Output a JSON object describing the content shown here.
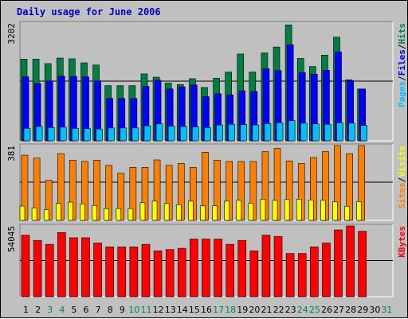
{
  "colors": {
    "hits": "#008040",
    "files": "#0000ff",
    "pages": "#00c0ff",
    "visits": "#ffff00",
    "sites": "#ff8000",
    "kbytes": "#ff0000",
    "title": "#0000c0",
    "weekend": "#00805c",
    "weekday": "#000000"
  },
  "chart_data": {
    "type": "bar",
    "title": "Daily usage for June 2006",
    "categories": [
      "1",
      "2",
      "3",
      "4",
      "5",
      "6",
      "7",
      "8",
      "9",
      "10",
      "11",
      "12",
      "13",
      "14",
      "15",
      "16",
      "17",
      "18",
      "19",
      "20",
      "21",
      "22",
      "23",
      "24",
      "25",
      "26",
      "27",
      "28",
      "29",
      "30",
      "31"
    ],
    "weekend_days": [
      "3",
      "4",
      "10",
      "11",
      "17",
      "18",
      "24",
      "25",
      "31"
    ],
    "panels": [
      {
        "id": "hits-files-pages",
        "scale_label": "3202",
        "ylim": [
          0,
          3202
        ],
        "side_label": [
          "Pages",
          "Files",
          "Hits"
        ],
        "series": [
          {
            "name": "Hits",
            "values": [
              2220,
              2220,
              2100,
              2250,
              2230,
              2120,
              2060,
              1500,
              1500,
              1500,
              1820,
              1730,
              1570,
              1530,
              1690,
              1450,
              1700,
              1870,
              2360,
              1870,
              2390,
              2550,
              3150,
              2240,
              2020,
              2330,
              2820,
              1660,
              1410,
              0,
              0
            ]
          },
          {
            "name": "Files",
            "values": [
              1740,
              1560,
              1630,
              1760,
              1750,
              1740,
              1630,
              1150,
              1150,
              1150,
              1480,
              1650,
              1410,
              1470,
              1520,
              1200,
              1280,
              1250,
              1360,
              1340,
              1960,
              1910,
              2610,
              1860,
              1810,
              1920,
              2420,
              1640,
              1410,
              0,
              0
            ]
          },
          {
            "name": "Pages",
            "values": [
              340,
              390,
              360,
              370,
              340,
              330,
              320,
              350,
              350,
              350,
              410,
              460,
              400,
              390,
              380,
              360,
              430,
              450,
              440,
              430,
              470,
              490,
              550,
              480,
              460,
              450,
              490,
              480,
              420,
              0,
              0
            ]
          }
        ]
      },
      {
        "id": "visits-sites",
        "scale_label": "381",
        "ylim": [
          0,
          381
        ],
        "side_label": [
          "Sites",
          "Visits"
        ],
        "series": [
          {
            "name": "Sites",
            "values": [
              332,
              317,
              204,
              340,
              307,
              300,
              307,
              280,
              240,
              270,
              270,
              308,
              280,
              290,
              270,
              347,
              307,
              300,
              300,
              300,
              350,
              367,
              303,
              290,
              320,
              350,
              381,
              340,
              381,
              0,
              0
            ]
          },
          {
            "name": "Visits",
            "values": [
              73,
              64,
              54,
              86,
              93,
              84,
              76,
              60,
              60,
              60,
              90,
              98,
              86,
              80,
              98,
              74,
              74,
              98,
              102,
              88,
              108,
              102,
              106,
              108,
              104,
              102,
              94,
              72,
              96,
              0,
              0
            ]
          }
        ]
      },
      {
        "id": "kbytes",
        "scale_label": "54045",
        "ylim": [
          0,
          54045
        ],
        "side_label": [
          "KBytes"
        ],
        "series": [
          {
            "name": "KBytes",
            "values": [
              47000,
              43000,
              40000,
              49000,
              45000,
              45000,
              41000,
              38000,
              38000,
              38000,
              40000,
              35000,
              36000,
              37000,
              44000,
              44000,
              44000,
              40000,
              43000,
              35000,
              47000,
              46000,
              33000,
              33000,
              38000,
              41000,
              51000,
              54045,
              50000,
              0,
              0
            ]
          }
        ]
      }
    ]
  }
}
